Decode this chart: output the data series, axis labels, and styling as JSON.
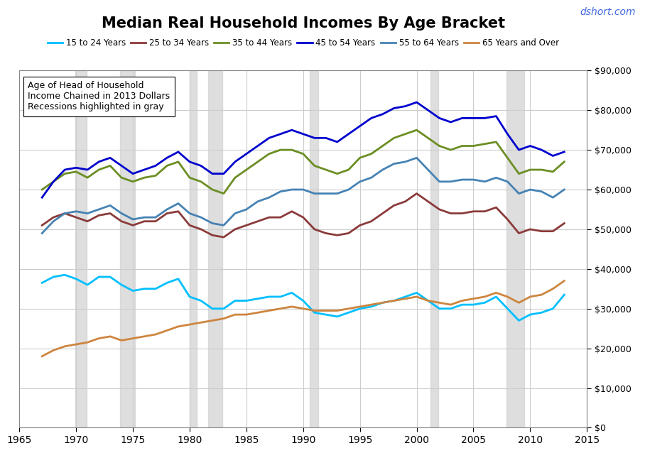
{
  "title": "Median Real Household Incomes By Age Bracket",
  "watermark": "dshort.com",
  "annotation": "Age of Head of Household\nIncome Chained in 2013 Dollars\nRecessions highlighted in gray",
  "years": [
    1967,
    1968,
    1969,
    1970,
    1971,
    1972,
    1973,
    1974,
    1975,
    1976,
    1977,
    1978,
    1979,
    1980,
    1981,
    1982,
    1983,
    1984,
    1985,
    1986,
    1987,
    1988,
    1989,
    1990,
    1991,
    1992,
    1993,
    1994,
    1995,
    1996,
    1997,
    1998,
    1999,
    2000,
    2001,
    2002,
    2003,
    2004,
    2005,
    2006,
    2007,
    2008,
    2009,
    2010,
    2011,
    2012,
    2013
  ],
  "series": {
    "15 to 24 Years": [
      36500,
      38000,
      38500,
      37500,
      36000,
      38000,
      38000,
      36000,
      34500,
      35000,
      35000,
      36500,
      37500,
      33000,
      32000,
      30000,
      30000,
      32000,
      32000,
      32500,
      33000,
      33000,
      34000,
      32000,
      29000,
      28500,
      28000,
      29000,
      30000,
      30500,
      31500,
      32000,
      33000,
      34000,
      32000,
      30000,
      30000,
      31000,
      31000,
      31500,
      33000,
      30000,
      27000,
      28500,
      29000,
      30000,
      33500
    ],
    "25 to 34 Years": [
      51000,
      53000,
      54000,
      53000,
      52000,
      53500,
      54000,
      52000,
      51000,
      52000,
      52000,
      54000,
      54500,
      51000,
      50000,
      48500,
      48000,
      50000,
      51000,
      52000,
      53000,
      53000,
      54500,
      53000,
      50000,
      49000,
      48500,
      49000,
      51000,
      52000,
      54000,
      56000,
      57000,
      59000,
      57000,
      55000,
      54000,
      54000,
      54500,
      54500,
      55500,
      52500,
      49000,
      50000,
      49500,
      49500,
      51500
    ],
    "35 to 44 Years": [
      60000,
      62000,
      64000,
      64500,
      63000,
      65000,
      66000,
      63000,
      62000,
      63000,
      63500,
      66000,
      67000,
      63000,
      62000,
      60000,
      59000,
      63000,
      65000,
      67000,
      69000,
      70000,
      70000,
      69000,
      66000,
      65000,
      64000,
      65000,
      68000,
      69000,
      71000,
      73000,
      74000,
      75000,
      73000,
      71000,
      70000,
      71000,
      71000,
      71500,
      72000,
      68000,
      64000,
      65000,
      65000,
      64500,
      67000
    ],
    "45 to 54 Years": [
      58000,
      62000,
      65000,
      65500,
      65000,
      67000,
      68000,
      66000,
      64000,
      65000,
      66000,
      68000,
      69500,
      67000,
      66000,
      64000,
      64000,
      67000,
      69000,
      71000,
      73000,
      74000,
      75000,
      74000,
      73000,
      73000,
      72000,
      74000,
      76000,
      78000,
      79000,
      80500,
      81000,
      82000,
      80000,
      78000,
      77000,
      78000,
      78000,
      78000,
      78500,
      74000,
      70000,
      71000,
      70000,
      68500,
      69500
    ],
    "55 to 64 Years": [
      49000,
      52000,
      54000,
      54500,
      54000,
      55000,
      56000,
      54000,
      52500,
      53000,
      53000,
      55000,
      56500,
      54000,
      53000,
      51500,
      51000,
      54000,
      55000,
      57000,
      58000,
      59500,
      60000,
      60000,
      59000,
      59000,
      59000,
      60000,
      62000,
      63000,
      65000,
      66500,
      67000,
      68000,
      65000,
      62000,
      62000,
      62500,
      62500,
      62000,
      63000,
      62000,
      59000,
      60000,
      59500,
      58000,
      60000
    ],
    "65 Years and Over": [
      18000,
      19500,
      20500,
      21000,
      21500,
      22500,
      23000,
      22000,
      22500,
      23000,
      23500,
      24500,
      25500,
      26000,
      26500,
      27000,
      27500,
      28500,
      28500,
      29000,
      29500,
      30000,
      30500,
      30000,
      29500,
      29500,
      29500,
      30000,
      30500,
      31000,
      31500,
      32000,
      32500,
      33000,
      32000,
      31500,
      31000,
      32000,
      32500,
      33000,
      34000,
      33000,
      31500,
      33000,
      33500,
      35000,
      37000
    ]
  },
  "colors": {
    "15 to 24 Years": "#00BFFF",
    "25 to 34 Years": "#8B3A3A",
    "35 to 44 Years": "#6B8E23",
    "45 to 54 Years": "#0000CD",
    "55 to 64 Years": "#4682B4",
    "65 Years and Over": "#CD853F"
  },
  "recessions": [
    [
      1969.9,
      1970.9
    ],
    [
      1973.9,
      1975.2
    ],
    [
      1980.0,
      1980.6
    ],
    [
      1981.6,
      1982.9
    ],
    [
      1990.6,
      1991.3
    ],
    [
      2001.2,
      2001.9
    ],
    [
      2007.9,
      2009.5
    ]
  ],
  "ylim": [
    0,
    90000
  ],
  "xlim": [
    1965,
    2015
  ],
  "yticks": [
    0,
    10000,
    20000,
    30000,
    40000,
    50000,
    60000,
    70000,
    80000,
    90000
  ],
  "xticks": [
    1965,
    1970,
    1975,
    1980,
    1985,
    1990,
    1995,
    2000,
    2005,
    2010,
    2015
  ],
  "background_color": "#FFFFFF",
  "grid_color": "#CCCCCC"
}
